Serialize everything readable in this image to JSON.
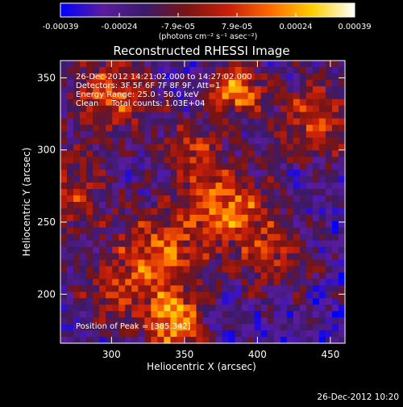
{
  "chart_data": {
    "type": "heatmap",
    "title": "Reconstructed RHESSI Image",
    "xlabel": "Heliocentric X (arcsec)",
    "ylabel": "Heliocentric Y (arcsec)",
    "xlim": [
      265,
      460
    ],
    "ylim": [
      166,
      362
    ],
    "xticks": [
      300,
      350,
      400,
      450
    ],
    "yticks": [
      200,
      250,
      300,
      350
    ],
    "grid": false,
    "colorbar": {
      "position": "top",
      "range": [
        -0.00039,
        0.00039
      ],
      "tick_labels": [
        "-0.00039",
        "-0.00024",
        "-7.9e-05",
        "7.9e-05",
        "0.00024",
        "0.00039"
      ],
      "unit_label": "(photons cm⁻² s⁻¹ asec⁻²)",
      "colormap": [
        "#0000ff",
        "#5a1c9e",
        "#3a1a6a",
        "#7a1414",
        "#c81e0a",
        "#ff6a00",
        "#ffd000",
        "#ffffff"
      ]
    },
    "annotations": [
      "26-Dec-2012 14:21:02.000 to 14:27:02.000",
      "Detectors: 3F 5F 6F 7F 8F 9F, Att=1",
      "Energy Range: 25.0 - 50.0 keV",
      "Clean     Total counts: 1.03E+04"
    ],
    "peak_label": "Position of Peak = [385,342]",
    "intensity_sources": [
      {
        "x": 385,
        "y": 342,
        "weight": 1.0,
        "spread": 12
      },
      {
        "x": 343,
        "y": 180,
        "weight": 0.95,
        "spread": 14
      },
      {
        "x": 335,
        "y": 228,
        "weight": 0.75,
        "spread": 22
      },
      {
        "x": 380,
        "y": 262,
        "weight": 0.8,
        "spread": 18
      },
      {
        "x": 300,
        "y": 338,
        "weight": 0.7,
        "spread": 20
      },
      {
        "x": 268,
        "y": 270,
        "weight": 0.55,
        "spread": 22
      },
      {
        "x": 440,
        "y": 320,
        "weight": 0.6,
        "spread": 22
      },
      {
        "x": 410,
        "y": 228,
        "weight": 0.5,
        "spread": 20
      },
      {
        "x": 300,
        "y": 200,
        "weight": 0.45,
        "spread": 18
      },
      {
        "x": 355,
        "y": 300,
        "weight": 0.55,
        "spread": 16
      }
    ]
  },
  "footer": {
    "date": "26-Dec-2012 10:20"
  }
}
